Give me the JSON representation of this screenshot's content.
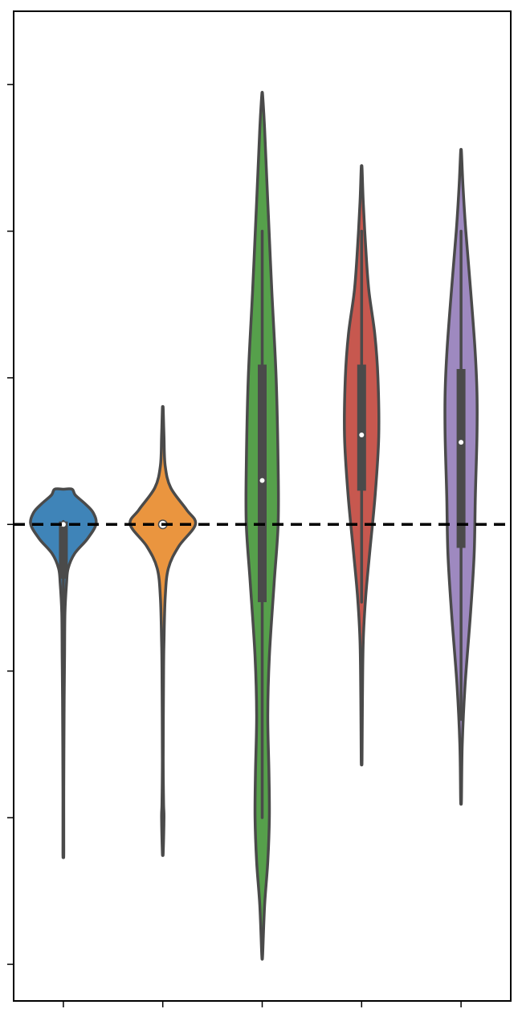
{
  "chart_data": {
    "type": "violin",
    "title": "",
    "xlabel": "",
    "ylabel": "",
    "categories": [
      "",
      "",
      "",
      "",
      ""
    ],
    "ylim": [
      -3.25,
      3.5
    ],
    "yticks": [
      -3,
      -2,
      -1,
      0,
      1,
      2,
      3
    ],
    "grid": false,
    "legend": "none",
    "reference_line": {
      "y": 0,
      "style": "dashed",
      "color": "#000000"
    },
    "series": [
      {
        "color": "#3f84b8",
        "min": -2.24,
        "q1": -0.37,
        "median": 0.0,
        "q3": 0.02,
        "max": 0.24,
        "whisker_low": -0.82,
        "whisker_high": 0.02,
        "profile": [
          [
            -2.24,
            0.01
          ],
          [
            -1.8,
            0.01
          ],
          [
            -1.2,
            0.02
          ],
          [
            -0.9,
            0.03
          ],
          [
            -0.6,
            0.04
          ],
          [
            -0.4,
            0.08
          ],
          [
            -0.3,
            0.12
          ],
          [
            -0.2,
            0.28
          ],
          [
            -0.1,
            0.6
          ],
          [
            0.0,
            0.82
          ],
          [
            0.08,
            0.75
          ],
          [
            0.14,
            0.55
          ],
          [
            0.2,
            0.3
          ],
          [
            0.24,
            0.22
          ]
        ]
      },
      {
        "color": "#ea953f",
        "min": -2.24,
        "q1": 0.0,
        "median": 0.0,
        "q3": 0.0,
        "max": 0.79,
        "whisker_low": 0.0,
        "whisker_high": 0.0,
        "profile": [
          [
            -2.24,
            0.01
          ],
          [
            -2.0,
            0.03
          ],
          [
            -1.9,
            0.02
          ],
          [
            -1.6,
            0.01
          ],
          [
            -1.0,
            0.02
          ],
          [
            -0.8,
            0.03
          ],
          [
            -0.5,
            0.06
          ],
          [
            -0.3,
            0.14
          ],
          [
            -0.15,
            0.4
          ],
          [
            0.0,
            0.82
          ],
          [
            0.1,
            0.6
          ],
          [
            0.25,
            0.2
          ],
          [
            0.4,
            0.06
          ],
          [
            0.6,
            0.03
          ],
          [
            0.79,
            0.01
          ]
        ]
      },
      {
        "color": "#56a04b",
        "min": -2.94,
        "q1": -0.53,
        "median": 0.3,
        "q3": 1.09,
        "max": 2.93,
        "whisker_low": -2.0,
        "whisker_high": 2.0,
        "profile": [
          [
            -2.94,
            0.01
          ],
          [
            -2.6,
            0.06
          ],
          [
            -2.3,
            0.14
          ],
          [
            -2.0,
            0.18
          ],
          [
            -1.7,
            0.17
          ],
          [
            -1.3,
            0.14
          ],
          [
            -0.9,
            0.18
          ],
          [
            -0.4,
            0.3
          ],
          [
            0.0,
            0.4
          ],
          [
            0.4,
            0.4
          ],
          [
            1.0,
            0.35
          ],
          [
            1.6,
            0.24
          ],
          [
            2.2,
            0.14
          ],
          [
            2.7,
            0.06
          ],
          [
            2.93,
            0.01
          ]
        ]
      },
      {
        "color": "#c7584f",
        "min": -1.61,
        "q1": 0.23,
        "median": 0.61,
        "q3": 1.09,
        "max": 2.43,
        "whisker_low": -0.53,
        "whisker_high": 2.0,
        "profile": [
          [
            -1.61,
            0.01
          ],
          [
            -1.2,
            0.02
          ],
          [
            -0.8,
            0.04
          ],
          [
            -0.5,
            0.1
          ],
          [
            -0.2,
            0.2
          ],
          [
            0.2,
            0.34
          ],
          [
            0.6,
            0.43
          ],
          [
            1.0,
            0.41
          ],
          [
            1.3,
            0.33
          ],
          [
            1.6,
            0.18
          ],
          [
            1.9,
            0.1
          ],
          [
            2.2,
            0.04
          ],
          [
            2.43,
            0.01
          ]
        ]
      },
      {
        "color": "#9e89c0",
        "min": -1.88,
        "q1": -0.16,
        "median": 0.56,
        "q3": 1.06,
        "max": 2.54,
        "whisker_low": -1.33,
        "whisker_high": 2.0,
        "profile": [
          [
            -1.88,
            0.01
          ],
          [
            -1.5,
            0.03
          ],
          [
            -1.1,
            0.1
          ],
          [
            -0.6,
            0.24
          ],
          [
            -0.2,
            0.33
          ],
          [
            0.2,
            0.36
          ],
          [
            0.6,
            0.4
          ],
          [
            0.9,
            0.4
          ],
          [
            1.2,
            0.35
          ],
          [
            1.6,
            0.24
          ],
          [
            2.0,
            0.12
          ],
          [
            2.3,
            0.05
          ],
          [
            2.54,
            0.01
          ]
        ]
      }
    ]
  }
}
